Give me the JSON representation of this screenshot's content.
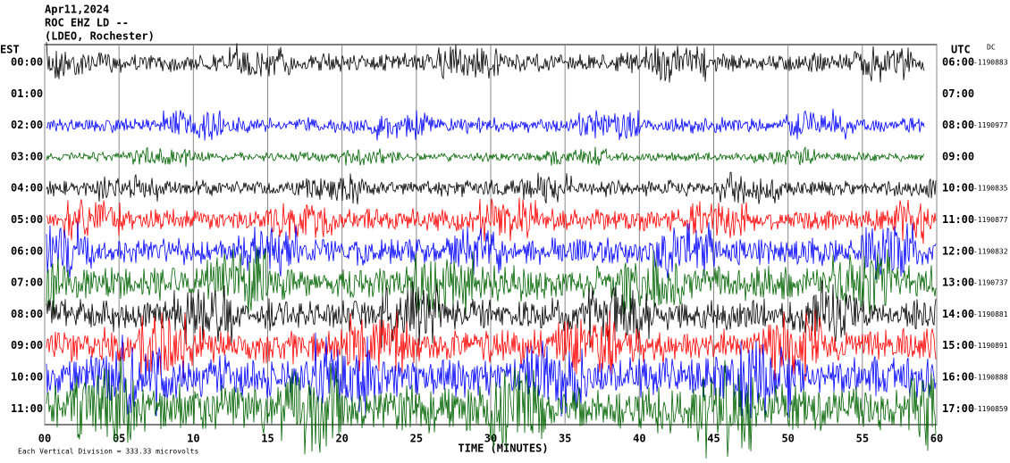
{
  "chart_data": {
    "type": "helicorder",
    "title_lines": [
      "Apr11,2024",
      "ROC EHZ LD --",
      "(LDEO, Rochester)"
    ],
    "left_axis_label": "EST",
    "right_axis_label": "UTC",
    "dc_label": "DC",
    "xlabel": "TIME (MINUTES)",
    "footnote": "Each Vertical Division = 333.33 microvolts",
    "xlim": [
      0,
      60
    ],
    "xticks": [
      {
        "value": 0,
        "label": "00"
      },
      {
        "value": 5,
        "label": "05"
      },
      10,
      15,
      20,
      25,
      30,
      35,
      40,
      45,
      50,
      55,
      60
    ],
    "rows_est": [
      "00:00",
      "01:00",
      "02:00",
      "03:00",
      "04:00",
      "05:00",
      "06:00",
      "07:00",
      "08:00",
      "09:00",
      "10:00",
      "11:00"
    ],
    "rows_utc": [
      "06:00",
      "07:00",
      "08:00",
      "09:00",
      "10:00",
      "11:00",
      "12:00",
      "13:00",
      "14:00",
      "15:00",
      "16:00",
      "17:00"
    ],
    "dc_values": [
      -1190883,
      null,
      -1190977,
      null,
      -1190835,
      -1190877,
      -1190832,
      -1190737,
      -1190881,
      -1190891,
      -1190888,
      -1190859
    ],
    "row_colors": [
      "#000000",
      "#ff0000",
      "#0000ff",
      "#006400"
    ]
  }
}
